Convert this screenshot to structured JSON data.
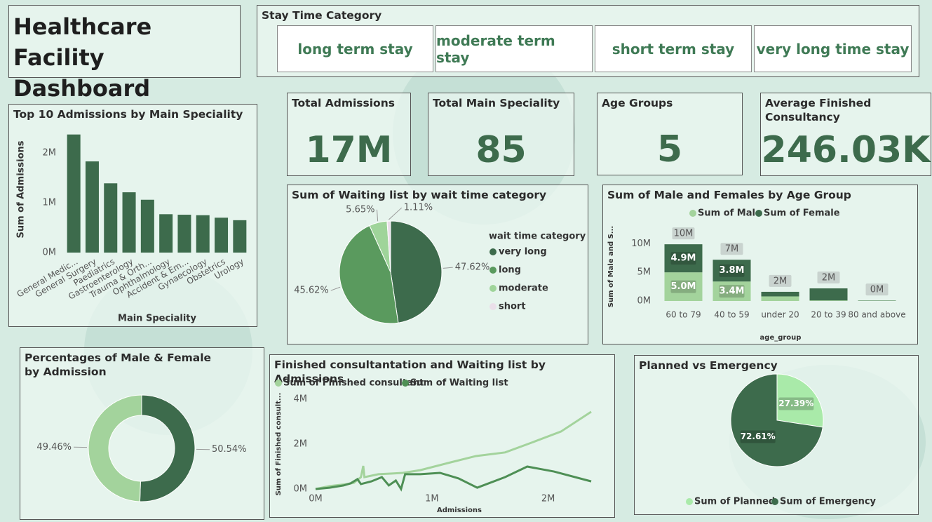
{
  "header": {
    "title": "Healthcare Facility Dashboard"
  },
  "slicer": {
    "title": "Stay Time Category",
    "items": [
      "long term stay",
      "moderate term stay",
      "short term stay",
      "very long time stay"
    ]
  },
  "cards": [
    {
      "title": "Total Admissions",
      "value": "17M"
    },
    {
      "title": "Total Main Speciality",
      "value": "85"
    },
    {
      "title": "Age Groups",
      "value": "5"
    },
    {
      "title": "Average Finished Consultancy",
      "value": "246.03K"
    }
  ],
  "chart_data": [
    {
      "type": "bar",
      "title": "Top 10 Admissions by Main Speciality",
      "x_label": "Main Speciality",
      "y_label": "Sum of Admissions",
      "color": "#3d6b4c",
      "categories": [
        "General Medic...",
        "General Surgery",
        "Paediatrics",
        "Gastroenterology",
        "Trauma & Orth...",
        "Ophthalmology",
        "Accident & Em...",
        "Gynaecology",
        "Obstetrics",
        "Urology"
      ],
      "values": [
        2370000,
        1830000,
        1390000,
        1210000,
        1060000,
        770000,
        760000,
        750000,
        700000,
        650000
      ],
      "ylim": [
        0,
        2450000
      ],
      "yticks": [
        {
          "value": 0,
          "label": "0M"
        },
        {
          "value": 1000000,
          "label": "1M"
        },
        {
          "value": 2000000,
          "label": "2M"
        }
      ]
    },
    {
      "type": "pie",
      "title": "Sum of Waiting list by wait time category",
      "legend_title": "wait time category",
      "categories": [
        "very long",
        "long",
        "moderate",
        "short"
      ],
      "values": [
        47.62,
        45.62,
        5.65,
        1.11
      ],
      "value_labels": [
        "47.62%",
        "45.62%",
        "5.65%",
        "1.11%"
      ],
      "colors": [
        "#3d6b4c",
        "#5a9a5e",
        "#9fd49a",
        "#eadfe9"
      ]
    },
    {
      "type": "stacked_bar",
      "title": "Sum of Male and Females by Age Group",
      "x_label": "age_group",
      "y_label": "Sum of Male and S...",
      "categories": [
        "60 to 79",
        "40 to 59",
        "under 20",
        "20 to 39",
        "80 and above"
      ],
      "series": [
        {
          "name": "Sum of Male",
          "color": "#a3d39c",
          "values": [
            5000000,
            3400000,
            800000,
            100000,
            50000
          ],
          "value_labels": [
            "5.0M",
            "3.4M",
            null,
            null,
            null
          ]
        },
        {
          "name": "Sum of Female",
          "color": "#3d6b4c",
          "values": [
            4900000,
            3800000,
            800000,
            2100000,
            50000
          ],
          "value_labels": [
            "4.9M",
            "3.8M",
            null,
            null,
            null
          ]
        }
      ],
      "total_labels": [
        "10M",
        "7M",
        "2M",
        "2M",
        "0M"
      ],
      "ylim": [
        0,
        12000000
      ],
      "yticks": [
        {
          "value": 0,
          "label": "0M"
        },
        {
          "value": 5000000,
          "label": "5M"
        },
        {
          "value": 10000000,
          "label": "10M"
        }
      ]
    },
    {
      "type": "donut",
      "title": "Percentages of Male & Female by Admission",
      "values": [
        50.54,
        49.46
      ],
      "value_labels": [
        "50.54%",
        "49.46%"
      ],
      "colors": [
        "#3d6b4c",
        "#a3d39c"
      ]
    },
    {
      "type": "line",
      "title": "Finished consultantation and Waiting list by Admissions",
      "x_label": "Admissions",
      "y_label": "Sum of Finished consult...",
      "series": [
        {
          "name": "Sum of Finished consultant",
          "color": "#a3d39c",
          "x": [
            0,
            120000,
            270000,
            330000,
            390000,
            410000,
            420000,
            540000,
            660000,
            750000,
            900000,
            1140000,
            1380000,
            1630000,
            1870000,
            2110000,
            2370000
          ],
          "values": [
            0,
            130000,
            220000,
            280000,
            530000,
            1030000,
            530000,
            660000,
            690000,
            720000,
            840000,
            1160000,
            1470000,
            1630000,
            2090000,
            2560000,
            3440000
          ]
        },
        {
          "name": "Sum of Waiting list",
          "color": "#4e8f55",
          "x": [
            0,
            120000,
            240000,
            300000,
            360000,
            390000,
            480000,
            570000,
            630000,
            690000,
            735000,
            770000,
            900000,
            1070000,
            1230000,
            1390000,
            1630000,
            1820000,
            2050000,
            2370000
          ],
          "values": [
            0,
            60000,
            160000,
            250000,
            440000,
            220000,
            340000,
            530000,
            160000,
            380000,
            0,
            660000,
            660000,
            720000,
            470000,
            60000,
            530000,
            1000000,
            780000,
            340000
          ]
        }
      ],
      "xlim": [
        0,
        2400000
      ],
      "xticks": [
        {
          "value": 0,
          "label": "0M"
        },
        {
          "value": 1000000,
          "label": "1M"
        },
        {
          "value": 2000000,
          "label": "2M"
        }
      ],
      "ylim": [
        0,
        4000000
      ],
      "yticks": [
        {
          "value": 0,
          "label": "0M"
        },
        {
          "value": 2000000,
          "label": "2M"
        },
        {
          "value": 4000000,
          "label": "4M"
        }
      ]
    },
    {
      "type": "pie",
      "title": "Planned vs Emergency",
      "categories": [
        "Sum of Planned",
        "Sum of Emergency"
      ],
      "values": [
        27.39,
        72.61
      ],
      "value_labels": [
        "27.39%",
        "72.61%"
      ],
      "colors": [
        "#a9eaa9",
        "#3d6b4c"
      ]
    }
  ]
}
